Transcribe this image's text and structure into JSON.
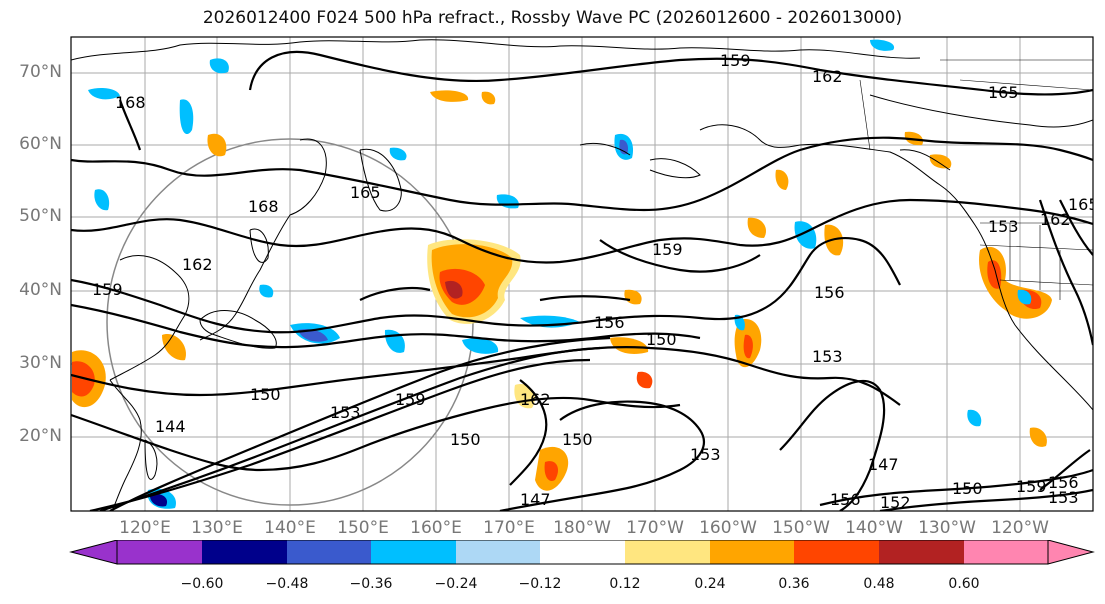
{
  "title": "2026012400 F024 500 hPa refract., Rossby Wave PC (2026012600 - 2026013000)",
  "lat_labels": [
    "70°N",
    "60°N",
    "50°N",
    "40°N",
    "30°N",
    "20°N"
  ],
  "lon_labels": [
    "120°E",
    "130°E",
    "140°E",
    "150°E",
    "160°E",
    "170°E",
    "180°W",
    "170°W",
    "160°W",
    "150°W",
    "140°W",
    "130°W",
    "120°W"
  ],
  "contour_labels": [
    "159",
    "162",
    "165",
    "168",
    "165",
    "168",
    "162",
    "159",
    "156",
    "150",
    "159",
    "156",
    "153",
    "150",
    "144",
    "153",
    "159",
    "162",
    "150",
    "147",
    "150",
    "153",
    "147",
    "156",
    "152",
    "150",
    "159",
    "156",
    "153",
    "162",
    "165",
    "153"
  ],
  "colorbar": {
    "colors": [
      "#9932CC",
      "#00008B",
      "#3A5ACD",
      "#00BFFF",
      "#ADD8F5",
      "#FFFFFF",
      "#FFE680",
      "#FFA500",
      "#FF4500",
      "#B22222",
      "#FF85B0"
    ],
    "tick_labels": [
      "−0.60",
      "−0.48",
      "−0.36",
      "−0.24",
      "−0.12",
      "0.12",
      "0.24",
      "0.36",
      "0.48",
      "0.60"
    ]
  }
}
